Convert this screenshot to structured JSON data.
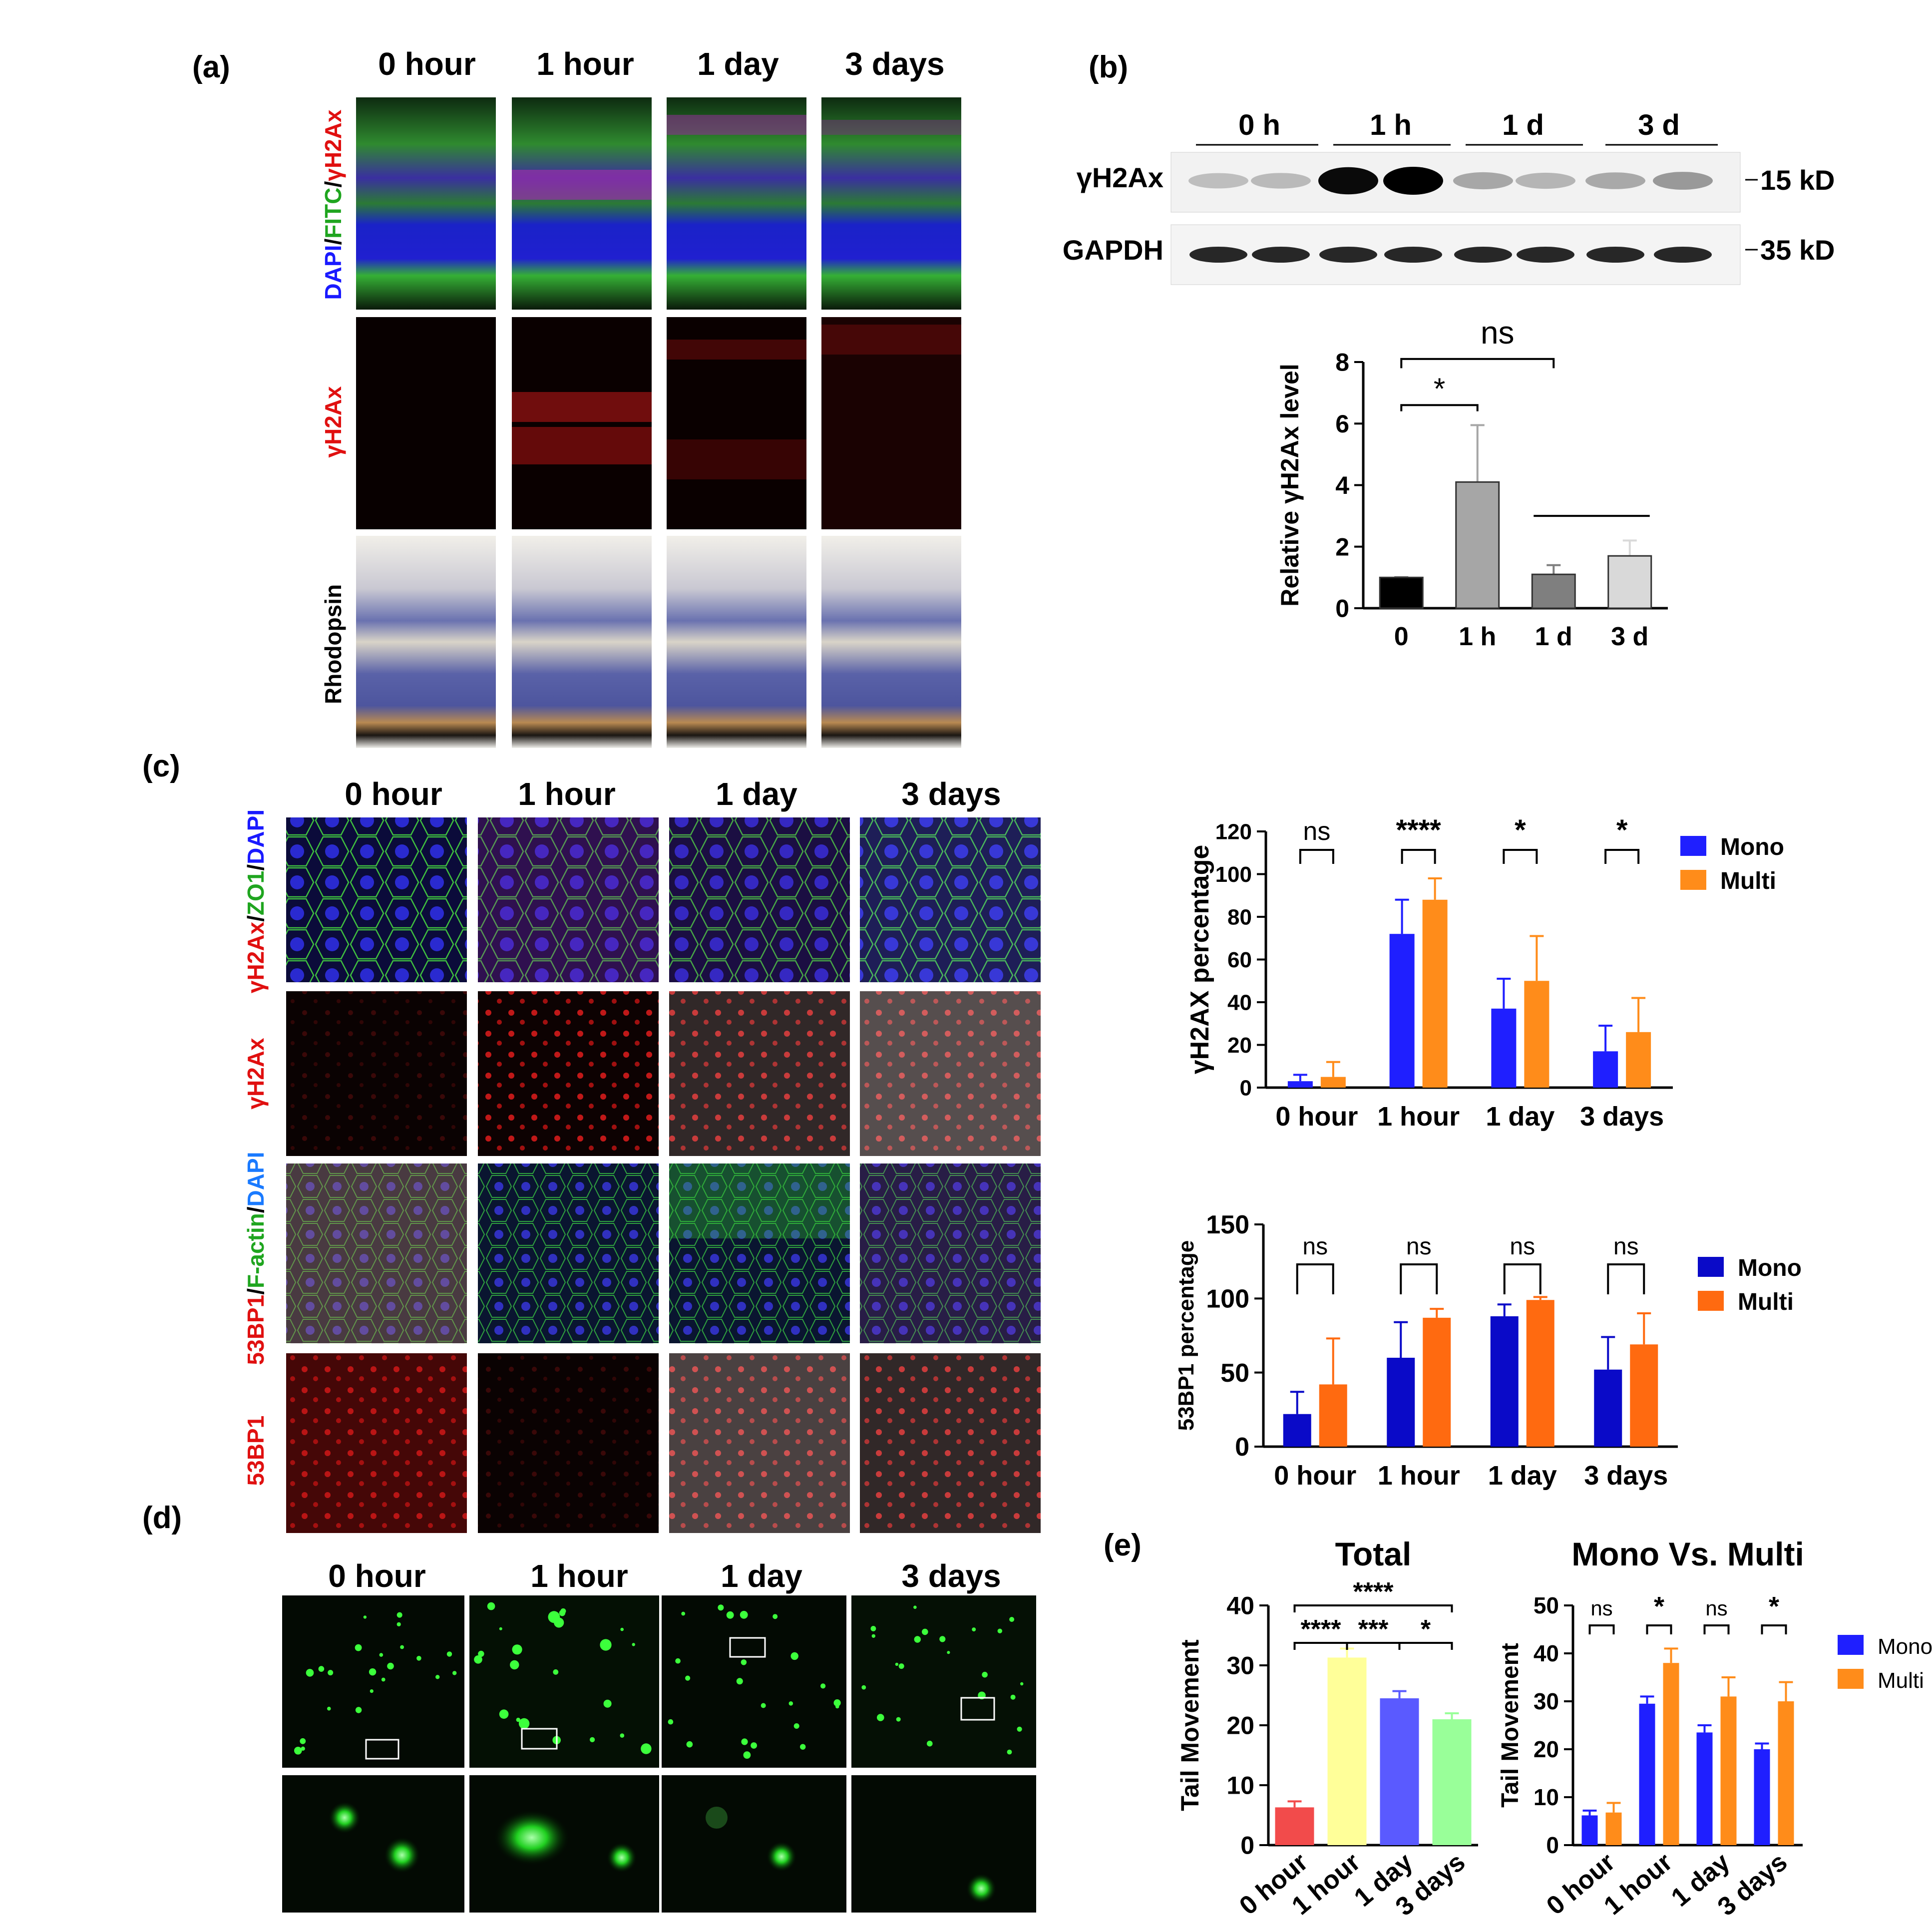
{
  "panel_letters": [
    "(a)",
    "(b)",
    "(c)",
    "(d)",
    "(e)"
  ],
  "panel_a": {
    "columns": [
      "0 hour",
      "1 hour",
      "1 day",
      "3 days"
    ],
    "row_labels": {
      "merge": [
        "DAPI",
        "/",
        "FITC",
        "/",
        "γH2Ax"
      ],
      "gh2ax": "γH2Ax",
      "rhodopsin": "Rhodopsin"
    }
  },
  "panel_b": {
    "blot_groups": [
      "0 h",
      "1 h",
      "1 d",
      "3 d"
    ],
    "bands": [
      "γH2Ax",
      "GAPDH"
    ],
    "sizes": [
      "15 kD",
      "35 kD"
    ],
    "gh2ax_band_intensity": [
      0.1,
      0.12,
      0.95,
      1.0,
      0.22,
      0.15,
      0.2,
      0.28
    ]
  },
  "panel_c": {
    "columns": [
      "0 hour",
      "1 hour",
      "1 day",
      "3 days"
    ],
    "row_labels": {
      "merge1": [
        "γH2Ax",
        "/",
        "ZO1",
        "/",
        "DAPI"
      ],
      "gh2ax": "γH2Ax",
      "merge2": [
        "53BP1",
        "/",
        "F-actin",
        "/",
        "DAPI"
      ],
      "bp53": "53BP1"
    }
  },
  "panel_d": {
    "columns": [
      "0 hour",
      "1 hour",
      "1 day",
      "3 days"
    ]
  },
  "colors": {
    "mono_c1": "#1f1fff",
    "multi_c1": "#ff8c1a",
    "mono_c2": "#0a0ac8",
    "multi_c2": "#ff6a10",
    "total_bars": [
      "#f24b4b",
      "#ffff99",
      "#5a5aff",
      "#99ff99"
    ],
    "relative_bars": [
      "#000000",
      "#a6a6a6",
      "#7f7f7f",
      "#d9d9d9"
    ]
  },
  "chart_data": [
    {
      "type": "bar",
      "id": "relative-gh2ax",
      "categories": [
        "0",
        "1 h",
        "1 d",
        "3 d"
      ],
      "values": [
        1.0,
        4.1,
        1.1,
        1.7
      ],
      "errors": [
        0,
        1.85,
        0.3,
        0.5
      ],
      "ylabel": "Relative γH2Ax level",
      "ylim": [
        0,
        8
      ],
      "yticks": [
        0,
        2,
        4,
        6,
        8
      ],
      "annotations": [
        "*",
        "ns"
      ]
    },
    {
      "type": "bar",
      "id": "gh2ax-percentage",
      "categories": [
        "0 hour",
        "1 hour",
        "1 day",
        "3 days"
      ],
      "series": [
        {
          "name": "Mono",
          "values": [
            3,
            72,
            37,
            17
          ],
          "errors": [
            3,
            16,
            14,
            12
          ]
        },
        {
          "name": "Multi",
          "values": [
            5,
            88,
            50,
            26
          ],
          "errors": [
            7,
            10,
            21,
            16
          ]
        }
      ],
      "ylabel": "γH2AX percentage",
      "ylim": [
        0,
        120
      ],
      "yticks": [
        0,
        20,
        40,
        60,
        80,
        100,
        120
      ],
      "significance": [
        "ns",
        "****",
        "*",
        "*"
      ],
      "legend": "right"
    },
    {
      "type": "bar",
      "id": "53bp1-percentage",
      "categories": [
        "0 hour",
        "1 hour",
        "1 day",
        "3 days"
      ],
      "series": [
        {
          "name": "Mono",
          "values": [
            22,
            60,
            88,
            52
          ],
          "errors": [
            15,
            24,
            8,
            22
          ]
        },
        {
          "name": "Multi",
          "values": [
            42,
            87,
            99,
            69
          ],
          "errors": [
            31,
            6,
            2,
            21
          ]
        }
      ],
      "ylabel": "53BP1 percentage",
      "ylim": [
        0,
        150
      ],
      "yticks": [
        0,
        50,
        100,
        150
      ],
      "significance": [
        "ns",
        "ns",
        "ns",
        "ns"
      ],
      "legend": "right"
    },
    {
      "type": "bar",
      "id": "tail-total",
      "title": "Total",
      "categories": [
        "0 hour",
        "1 hour",
        "1 day",
        "3 days"
      ],
      "values": [
        6.3,
        31.3,
        24.5,
        21.0
      ],
      "errors": [
        1.0,
        1.5,
        1.2,
        1.0
      ],
      "ylabel": "Tail Movement",
      "ylim": [
        0,
        40
      ],
      "yticks": [
        0,
        10,
        20,
        30,
        40
      ],
      "annotations": [
        "****",
        "****",
        "***",
        "*"
      ]
    },
    {
      "type": "bar",
      "id": "tail-mono-multi",
      "title": "Mono Vs. Multi",
      "categories": [
        "0 hour",
        "1 hour",
        "1 day",
        "3 days"
      ],
      "series": [
        {
          "name": "Mono",
          "values": [
            6.2,
            29.5,
            23.5,
            20.0
          ],
          "errors": [
            1.0,
            1.5,
            1.5,
            1.2
          ]
        },
        {
          "name": "Multi",
          "values": [
            6.8,
            38.0,
            31.0,
            30.0
          ],
          "errors": [
            2.0,
            3.0,
            4.0,
            4.0
          ]
        }
      ],
      "ylabel": "Tail Movement",
      "ylim": [
        0,
        50
      ],
      "yticks": [
        0,
        10,
        20,
        30,
        40,
        50
      ],
      "significance": [
        "ns",
        "*",
        "ns",
        "*"
      ],
      "legend": "right"
    }
  ]
}
